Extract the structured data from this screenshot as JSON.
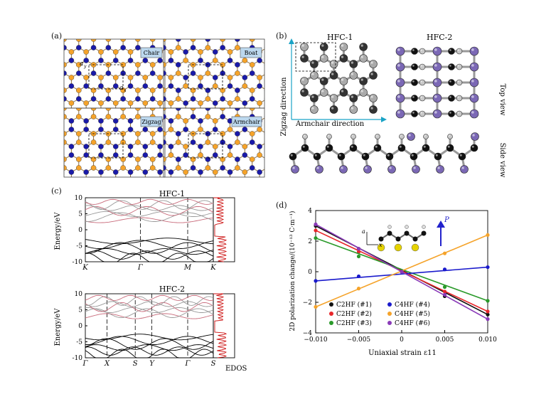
{
  "panel_a": {
    "label": "(a)",
    "tiles": [
      {
        "tag": "Chair"
      },
      {
        "tag": "Boat"
      },
      {
        "tag": "Zigzag"
      },
      {
        "tag": "Armchair"
      }
    ],
    "ay_label": "a",
    "ay_sub": "y",
    "ax_label": "a",
    "ax_sub": "x",
    "colors": {
      "orange": "#f5a32a",
      "blue": "#1a1aa8",
      "bond": "#8a6a3a"
    }
  },
  "panel_b": {
    "label": "(b)",
    "hfc1": "HFC-1",
    "hfc2": "HFC-2",
    "zigzag_direction": "Zigzag direction",
    "armchair_direction": "Armchair direction",
    "top_view": "Top view",
    "side_view": "Side view",
    "colors": {
      "carbon": "#111111",
      "hydrogen": "#c8c8c8",
      "fluorine": "#7b68b5",
      "arrow": "#1aa3c6"
    }
  },
  "panel_c": {
    "label": "(c)",
    "top": {
      "title": "HFC-1",
      "ylabel": "Energy/eV",
      "yticks": [
        "10",
        "5",
        "0",
        "-5",
        "-10"
      ],
      "xticks": [
        "K",
        "Γ",
        "M",
        "K"
      ]
    },
    "bottom": {
      "title": "HFC-2",
      "ylabel": "Energy/eV",
      "yticks": [
        "10",
        "5",
        "0",
        "-5",
        "-10"
      ],
      "xticks": [
        "Γ",
        "X",
        "S",
        "Y",
        "Γ",
        "S"
      ],
      "edos": "EDOS"
    },
    "colors": {
      "valence": "#000000",
      "conduction": "#999999",
      "edos": "#cc1111"
    }
  },
  "panel_d": {
    "label": "(d)",
    "axis_symbol_a": "a",
    "axis_symbol_x": "x",
    "polarization": "P",
    "chart_data": {
      "type": "line",
      "xlabel": "Uniaxial strain ε11",
      "ylabel": "2D polarization change/(10⁻¹³ C·m⁻¹)",
      "xlim": [
        -0.01,
        0.01
      ],
      "ylim": [
        -4,
        4
      ],
      "xticks": [
        "−0.010",
        "−0.005",
        "0",
        "0.005",
        "0.010"
      ],
      "yticks": [
        "4",
        "2",
        "0",
        "−2",
        "−4"
      ],
      "x": [
        -0.01,
        -0.005,
        0,
        0.005,
        0.01
      ],
      "legend_position": "bottom-left",
      "series": [
        {
          "name": "C2HF (#1)",
          "color": "#111111",
          "values": [
            3.0,
            1.5,
            0.0,
            -1.6,
            -2.8
          ]
        },
        {
          "name": "C2HF (#2)",
          "color": "#e8262a",
          "values": [
            2.7,
            1.3,
            0.0,
            -1.3,
            -2.6
          ]
        },
        {
          "name": "C2HF (#3)",
          "color": "#2a9a2a",
          "values": [
            2.2,
            1.0,
            0.0,
            -1.0,
            -1.9
          ]
        },
        {
          "name": "C4HF (#4)",
          "color": "#1a1acc",
          "values": [
            -0.6,
            -0.3,
            0.0,
            0.15,
            0.3
          ]
        },
        {
          "name": "C4HF (#5)",
          "color": "#f5a32a",
          "values": [
            -2.3,
            -1.1,
            0.0,
            1.2,
            2.4
          ]
        },
        {
          "name": "C4HF (#6)",
          "color": "#8a3ab8",
          "values": [
            3.1,
            1.5,
            0.0,
            -1.5,
            -3.1
          ]
        }
      ]
    }
  }
}
